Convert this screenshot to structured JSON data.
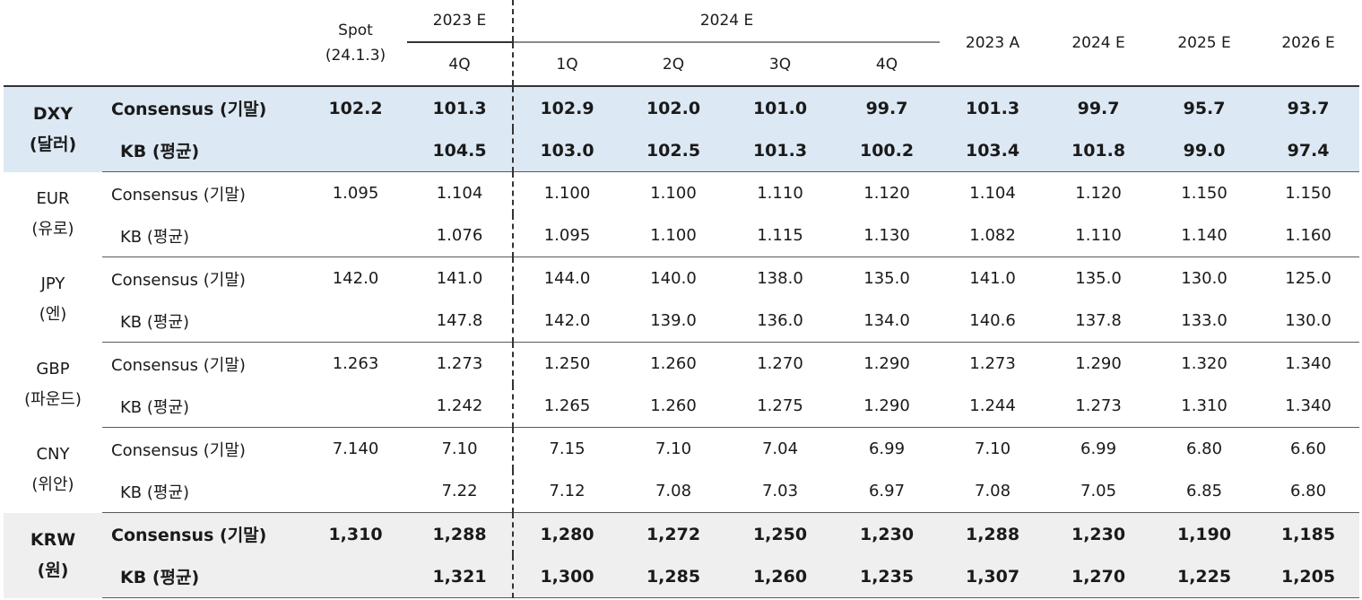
{
  "header": {
    "spot_label": "Spot",
    "spot_date": "(24.1.3)",
    "y2023e": "2023 E",
    "y2024e": "2024 E",
    "q4_2023": "4Q",
    "q1": "1Q",
    "q2": "2Q",
    "q3": "3Q",
    "q4": "4Q",
    "a2023": "2023 A",
    "e2024": "2024 E",
    "e2025": "2025 E",
    "e2026": "2026 E"
  },
  "groups": [
    {
      "code": "DXY",
      "name": "(달러)",
      "consensus_label": "Consensus (기말)",
      "kb_label": "KB (평균)",
      "consensus": [
        "102.2",
        "101.3",
        "102.9",
        "102.0",
        "101.0",
        "99.7",
        "101.3",
        "99.7",
        "95.7",
        "93.7"
      ],
      "kb": [
        "",
        "104.5",
        "103.0",
        "102.5",
        "101.3",
        "100.2",
        "103.4",
        "101.8",
        "99.0",
        "97.4"
      ]
    },
    {
      "code": "EUR",
      "name": "(유로)",
      "consensus_label": "Consensus (기말)",
      "kb_label": "KB (평균)",
      "consensus": [
        "1.095",
        "1.104",
        "1.100",
        "1.100",
        "1.110",
        "1.120",
        "1.104",
        "1.120",
        "1.150",
        "1.150"
      ],
      "kb": [
        "",
        "1.076",
        "1.095",
        "1.100",
        "1.115",
        "1.130",
        "1.082",
        "1.110",
        "1.140",
        "1.160"
      ]
    },
    {
      "code": "JPY",
      "name": "(엔)",
      "consensus_label": "Consensus (기말)",
      "kb_label": "KB (평균)",
      "consensus": [
        "142.0",
        "141.0",
        "144.0",
        "140.0",
        "138.0",
        "135.0",
        "141.0",
        "135.0",
        "130.0",
        "125.0"
      ],
      "kb": [
        "",
        "147.8",
        "142.0",
        "139.0",
        "136.0",
        "134.0",
        "140.6",
        "137.8",
        "133.0",
        "130.0"
      ]
    },
    {
      "code": "GBP",
      "name": "(파운드)",
      "consensus_label": "Consensus (기말)",
      "kb_label": "KB (평균)",
      "consensus": [
        "1.263",
        "1.273",
        "1.250",
        "1.260",
        "1.270",
        "1.290",
        "1.273",
        "1.290",
        "1.320",
        "1.340"
      ],
      "kb": [
        "",
        "1.242",
        "1.265",
        "1.260",
        "1.275",
        "1.290",
        "1.244",
        "1.273",
        "1.310",
        "1.340"
      ]
    },
    {
      "code": "CNY",
      "name": "(위안)",
      "consensus_label": "Consensus (기말)",
      "kb_label": "KB (평균)",
      "consensus": [
        "7.140",
        "7.10",
        "7.15",
        "7.10",
        "7.04",
        "6.99",
        "7.10",
        "6.99",
        "6.80",
        "6.60"
      ],
      "kb": [
        "",
        "7.22",
        "7.12",
        "7.08",
        "7.03",
        "6.97",
        "7.08",
        "7.05",
        "6.85",
        "6.80"
      ]
    },
    {
      "code": "KRW",
      "name": "(원)",
      "consensus_label": "Consensus (기말)",
      "kb_label": "KB (평균)",
      "consensus": [
        "1,310",
        "1,288",
        "1,280",
        "1,272",
        "1,250",
        "1,230",
        "1,288",
        "1,230",
        "1,190",
        "1,185"
      ],
      "kb": [
        "",
        "1,321",
        "1,300",
        "1,285",
        "1,260",
        "1,235",
        "1,307",
        "1,270",
        "1,225",
        "1,205"
      ]
    }
  ],
  "colors": {
    "dxy_background": "#dce8f3",
    "krw_background": "#efefef"
  }
}
